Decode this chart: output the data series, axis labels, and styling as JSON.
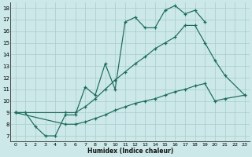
{
  "xlabel": "Humidex (Indice chaleur)",
  "bg_color": "#cce8e8",
  "grid_color": "#a8cccc",
  "line_color": "#1a6b5a",
  "xlim": [
    -0.5,
    23.5
  ],
  "ylim": [
    6.5,
    18.5
  ],
  "xticks": [
    0,
    1,
    2,
    3,
    4,
    5,
    6,
    7,
    8,
    9,
    10,
    11,
    12,
    13,
    14,
    15,
    16,
    17,
    18,
    19,
    20,
    21,
    22,
    23
  ],
  "yticks": [
    7,
    8,
    9,
    10,
    11,
    12,
    13,
    14,
    15,
    16,
    17,
    18
  ],
  "line1_x": [
    0,
    1,
    2,
    3,
    4,
    5,
    6,
    7,
    8,
    9,
    10,
    11,
    12,
    13,
    14,
    15,
    16,
    17,
    18,
    19
  ],
  "line1_y": [
    9,
    9,
    7.8,
    7.0,
    7.0,
    8.8,
    8.8,
    11.2,
    10.5,
    13.2,
    11.0,
    16.8,
    17.2,
    16.3,
    16.3,
    17.8,
    18.2,
    17.5,
    17.8,
    16.8
  ],
  "line2_x": [
    0,
    5,
    6,
    7,
    8,
    9,
    10,
    11,
    12,
    13,
    14,
    15,
    16,
    17,
    18,
    19,
    20,
    21,
    23
  ],
  "line2_y": [
    9,
    9,
    9,
    9.5,
    10.2,
    11.0,
    11.8,
    12.5,
    13.2,
    13.8,
    14.5,
    15.0,
    15.5,
    16.5,
    16.5,
    15.0,
    13.5,
    12.2,
    10.5
  ],
  "line3_x": [
    0,
    5,
    6,
    7,
    8,
    9,
    10,
    11,
    12,
    13,
    14,
    15,
    16,
    17,
    18,
    19,
    20,
    21,
    23
  ],
  "line3_y": [
    9,
    8.0,
    8.0,
    8.2,
    8.5,
    8.8,
    9.2,
    9.5,
    9.8,
    10.0,
    10.2,
    10.5,
    10.8,
    11.0,
    11.3,
    11.5,
    10.0,
    10.2,
    10.5
  ]
}
